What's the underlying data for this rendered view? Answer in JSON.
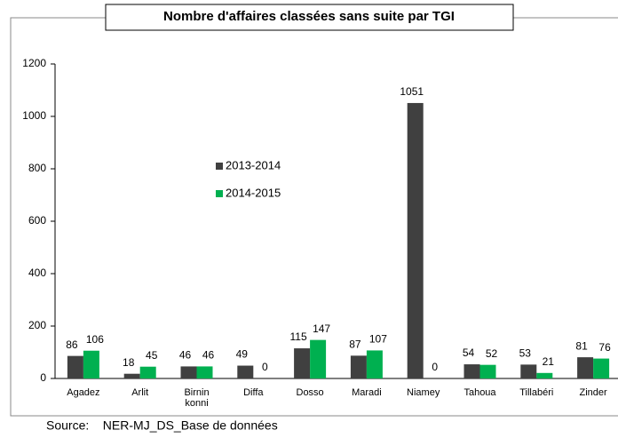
{
  "chart_data": {
    "type": "bar",
    "title": "Nombre d'affaires classées sans suite par TGI",
    "categories": [
      "Agadez",
      "Arlit",
      "Birnin konni",
      "Diffa",
      "Dosso",
      "Maradi",
      "Niamey",
      "Tahoua",
      "Tillabéri",
      "Zinder"
    ],
    "series": [
      {
        "name": "2013-2014",
        "color": "#404040",
        "values": [
          86,
          18,
          46,
          49,
          115,
          87,
          1051,
          54,
          53,
          81
        ]
      },
      {
        "name": "2014-2015",
        "color": "#00b050",
        "values": [
          106,
          45,
          46,
          0,
          147,
          107,
          0,
          52,
          21,
          76
        ]
      }
    ],
    "ylim": [
      0,
      1200
    ],
    "yticks": [
      0,
      200,
      400,
      600,
      800,
      1000,
      1200
    ],
    "grid": false,
    "source": "Source:    NER-MJ_DS_Base de données"
  }
}
